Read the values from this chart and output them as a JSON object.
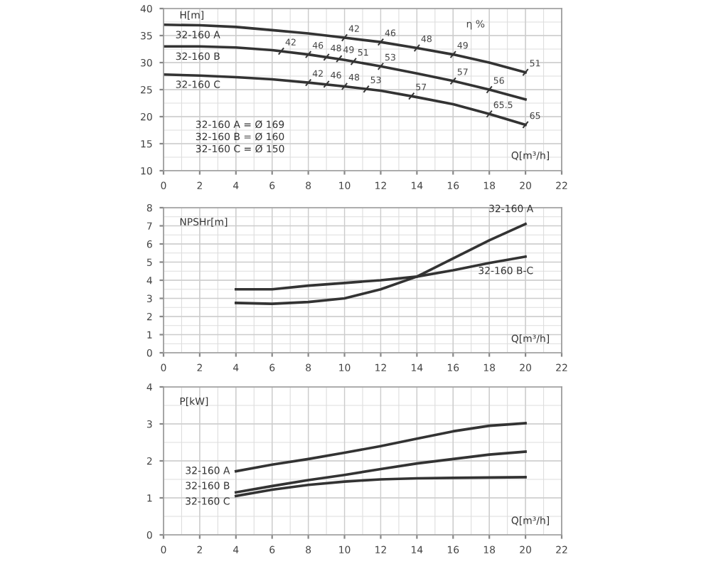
{
  "chart_data": [
    {
      "type": "line",
      "xlabel": "Q[m³/h]",
      "ylabel": "H[m]",
      "xlim": [
        0,
        22
      ],
      "ylim": [
        10,
        40
      ],
      "xticks": [
        0,
        2,
        4,
        6,
        8,
        10,
        12,
        14,
        16,
        18,
        20,
        22
      ],
      "yticks": [
        10,
        15,
        20,
        25,
        30,
        35,
        40
      ],
      "grid": true,
      "x": [
        0,
        2,
        4,
        6,
        8,
        10,
        12,
        14,
        16,
        18,
        20
      ],
      "series": [
        {
          "name": "32-160 A",
          "color": "#333333",
          "values": [
            37,
            36.9,
            36.6,
            36,
            35.4,
            34.6,
            33.8,
            32.7,
            31.5,
            30,
            28.2
          ]
        },
        {
          "name": "32-160 B",
          "color": "#333333",
          "values": [
            33,
            33,
            32.8,
            32.3,
            31.5,
            30.5,
            29.3,
            28,
            26.6,
            25,
            23.2
          ]
        },
        {
          "name": "32-160 C",
          "color": "#333333",
          "values": [
            27.8,
            27.6,
            27.3,
            26.9,
            26.3,
            25.6,
            24.8,
            23.6,
            22.3,
            20.5,
            18.5
          ]
        }
      ],
      "annotations": [
        "η %",
        "32-160 A = Ø 169",
        "32-160 B = Ø 160",
        "32-160 C = Ø 150",
        {
          "text": "42",
          "x": 10,
          "y": 34.6
        },
        {
          "text": "46",
          "x": 12,
          "y": 33.8
        },
        {
          "text": "48",
          "x": 14,
          "y": 32.7
        },
        {
          "text": "49",
          "x": 16,
          "y": 31.5
        },
        {
          "text": "51",
          "x": 20,
          "y": 28.2
        },
        {
          "text": "42",
          "x": 6.5,
          "y": 32.1
        },
        {
          "text": "46",
          "x": 8,
          "y": 31.5
        },
        {
          "text": "48",
          "x": 9,
          "y": 31
        },
        {
          "text": "49",
          "x": 9.7,
          "y": 30.7
        },
        {
          "text": "51",
          "x": 10.5,
          "y": 30.2
        },
        {
          "text": "53",
          "x": 12,
          "y": 29.3
        },
        {
          "text": "57",
          "x": 16,
          "y": 26.6
        },
        {
          "text": "56",
          "x": 18,
          "y": 25
        },
        {
          "text": "42",
          "x": 8,
          "y": 26.3
        },
        {
          "text": "46",
          "x": 9,
          "y": 26
        },
        {
          "text": "48",
          "x": 10,
          "y": 25.6
        },
        {
          "text": "53",
          "x": 11.2,
          "y": 25.1
        },
        {
          "text": "57",
          "x": 13.7,
          "y": 23.8
        },
        {
          "text": "65.5",
          "x": 18,
          "y": 20.5
        },
        {
          "text": "65",
          "x": 20,
          "y": 18.5
        }
      ]
    },
    {
      "type": "line",
      "xlabel": "Q[m³/h]",
      "ylabel": "NPSHr[m]",
      "xlim": [
        0,
        22
      ],
      "ylim": [
        0,
        8
      ],
      "xticks": [
        0,
        2,
        4,
        6,
        8,
        10,
        12,
        14,
        16,
        18,
        20,
        22
      ],
      "yticks": [
        0,
        1,
        2,
        3,
        4,
        5,
        6,
        7,
        8
      ],
      "grid": true,
      "x": [
        4,
        6,
        8,
        10,
        12,
        14,
        16,
        18,
        20
      ],
      "series": [
        {
          "name": "32-160 A",
          "color": "#333333",
          "values": [
            2.75,
            2.7,
            2.8,
            3.0,
            3.5,
            4.2,
            5.2,
            6.2,
            7.1
          ]
        },
        {
          "name": "32-160 B-C",
          "color": "#333333",
          "values": [
            3.5,
            3.5,
            3.7,
            3.85,
            4.0,
            4.2,
            4.55,
            4.95,
            5.3
          ]
        }
      ]
    },
    {
      "type": "line",
      "xlabel": "Q[m³/h]",
      "ylabel": "P[kW]",
      "xlim": [
        0,
        22
      ],
      "ylim": [
        0,
        4
      ],
      "xticks": [
        0,
        2,
        4,
        6,
        8,
        10,
        12,
        14,
        16,
        18,
        20,
        22
      ],
      "yticks": [
        0,
        1,
        2,
        3,
        4
      ],
      "grid": true,
      "x": [
        4,
        6,
        8,
        10,
        12,
        14,
        16,
        18,
        20
      ],
      "series": [
        {
          "name": "32-160 A",
          "color": "#333333",
          "values": [
            1.72,
            1.9,
            2.05,
            2.22,
            2.4,
            2.6,
            2.8,
            2.95,
            3.02
          ]
        },
        {
          "name": "32-160 B",
          "color": "#333333",
          "values": [
            1.15,
            1.32,
            1.48,
            1.62,
            1.78,
            1.93,
            2.05,
            2.17,
            2.25
          ]
        },
        {
          "name": "32-160 C",
          "color": "#333333",
          "values": [
            1.05,
            1.22,
            1.35,
            1.44,
            1.5,
            1.53,
            1.54,
            1.55,
            1.56
          ]
        }
      ]
    }
  ]
}
